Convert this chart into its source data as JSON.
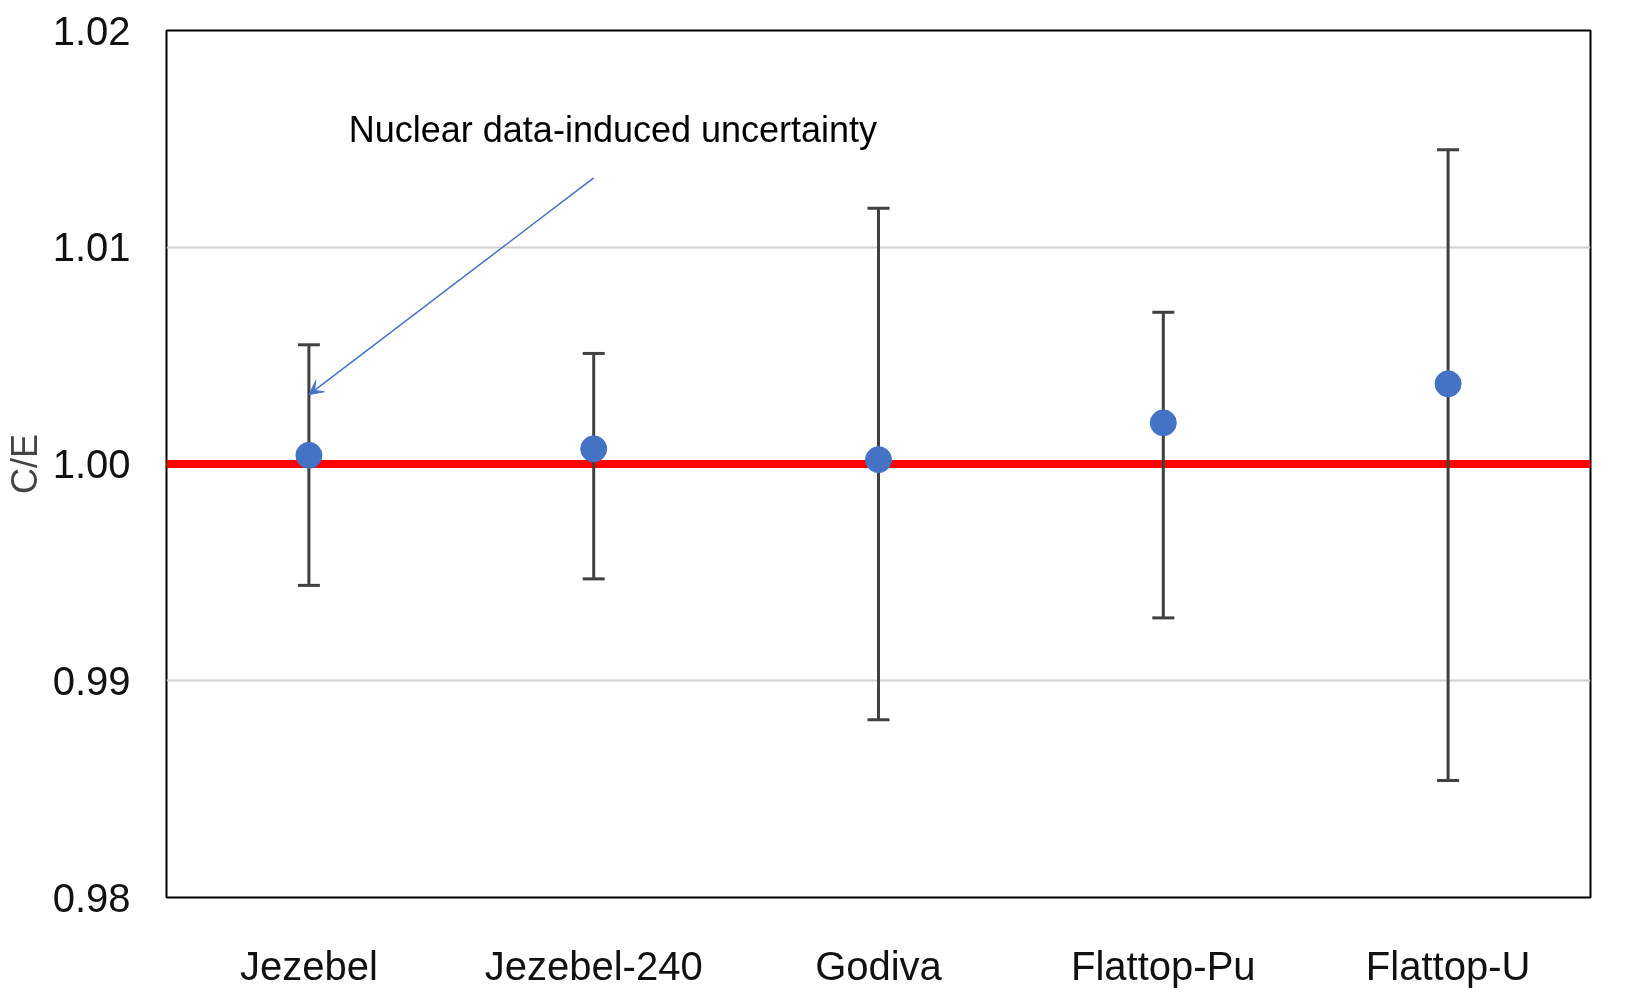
{
  "chart_data": {
    "type": "scatter",
    "ylabel": "C/E",
    "categories": [
      "Jezebel",
      "Jezebel-240",
      "Godiva",
      "Flattop-Pu",
      "Flattop-U"
    ],
    "series": [
      {
        "color": "#4472c4",
        "values": [
          1.0004,
          1.0007,
          1.0002,
          1.0019,
          1.0037
        ],
        "errors": [
          [
            0.9944,
            1.0055
          ],
          [
            0.9947,
            1.0051
          ],
          [
            0.9882,
            1.0118
          ],
          [
            0.9929,
            1.007
          ],
          [
            0.9854,
            1.0145
          ]
        ]
      }
    ],
    "ylim": [
      0.98,
      1.02
    ],
    "yticks": [
      {
        "value": 0.98,
        "label": "0.98"
      },
      {
        "value": 0.99,
        "label": "0.99"
      },
      {
        "value": 1.0,
        "label": "1.00"
      },
      {
        "value": 1.01,
        "label": "1.01"
      },
      {
        "value": 1.02,
        "label": "1.02"
      }
    ],
    "grid": "y",
    "marker": "circle",
    "ref_lines": [
      {
        "axis": "y",
        "value": 1.0,
        "color": "#ff0000"
      }
    ],
    "annotations": [
      {
        "text": "Nuclear data-induced uncertainty",
        "x": "Jezebel",
        "y": 1.0032
      }
    ]
  }
}
